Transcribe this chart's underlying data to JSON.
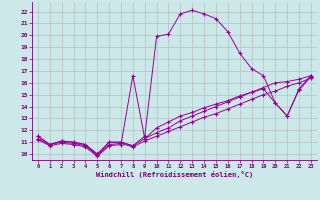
{
  "xlabel": "Windchill (Refroidissement éolien,°C)",
  "bg_color": "#cce8e8",
  "line_color": "#990099",
  "grid_color": "#aabbbb",
  "tick_color": "#770077",
  "x_ticks": [
    0,
    1,
    2,
    3,
    4,
    5,
    6,
    7,
    8,
    9,
    10,
    11,
    12,
    13,
    14,
    15,
    16,
    17,
    18,
    19,
    20,
    21,
    22,
    23
  ],
  "y_ticks": [
    10,
    11,
    12,
    13,
    14,
    15,
    16,
    17,
    18,
    19,
    20,
    21,
    22
  ],
  "ylim": [
    9.5,
    22.8
  ],
  "xlim": [
    -0.5,
    23.5
  ],
  "series1_y": [
    11.5,
    10.8,
    11.1,
    11.0,
    10.8,
    10.0,
    11.0,
    11.0,
    10.7,
    11.5,
    19.9,
    20.1,
    21.8,
    22.1,
    21.8,
    21.4,
    20.3,
    18.5,
    17.2,
    16.6,
    14.3,
    13.2,
    15.4,
    16.5
  ],
  "series2_y": [
    11.5,
    10.8,
    11.1,
    11.0,
    10.8,
    10.0,
    11.0,
    11.0,
    10.7,
    11.3,
    11.8,
    12.2,
    12.8,
    13.2,
    13.6,
    14.0,
    14.4,
    14.8,
    15.2,
    15.6,
    16.0,
    16.1,
    16.3,
    16.6
  ],
  "series3_y": [
    11.3,
    10.8,
    11.0,
    10.9,
    10.7,
    9.9,
    10.8,
    10.9,
    10.6,
    11.1,
    11.5,
    11.9,
    12.3,
    12.7,
    13.1,
    13.4,
    13.8,
    14.2,
    14.6,
    15.0,
    15.3,
    15.7,
    16.0,
    16.4
  ],
  "series4_y": [
    11.2,
    10.7,
    10.9,
    10.8,
    10.6,
    9.8,
    10.7,
    10.8,
    16.6,
    11.3,
    12.2,
    12.7,
    13.2,
    13.5,
    13.9,
    14.2,
    14.5,
    14.9,
    15.2,
    15.5,
    14.3,
    13.2,
    15.5,
    16.6
  ]
}
